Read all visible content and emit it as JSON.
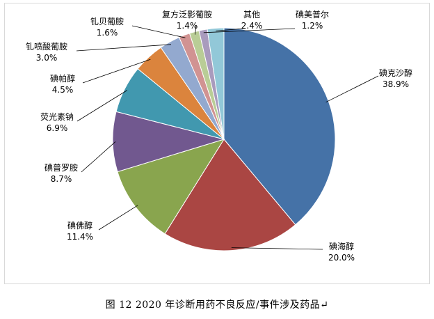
{
  "caption": "图 12   2020 年诊断用药不良反应/事件涉及药品↵",
  "chart_data": {
    "type": "pie",
    "title": "",
    "legend": "none",
    "slices": [
      {
        "name": "碘克沙醇",
        "value": 38.9,
        "label": "38.9%",
        "color": "#4572a7"
      },
      {
        "name": "碘海醇",
        "value": 20.0,
        "label": "20.0%",
        "color": "#aa4643"
      },
      {
        "name": "碘佛醇",
        "value": 11.4,
        "label": "11.4%",
        "color": "#89a54e"
      },
      {
        "name": "碘普罗胺",
        "value": 8.7,
        "label": "8.7%",
        "color": "#71588f"
      },
      {
        "name": "荧光素钠",
        "value": 6.9,
        "label": "6.9%",
        "color": "#4198af"
      },
      {
        "name": "碘帕醇",
        "value": 4.5,
        "label": "4.5%",
        "color": "#db843d"
      },
      {
        "name": "钆喷酸葡胺",
        "value": 3.0,
        "label": "3.0%",
        "color": "#93a9cf"
      },
      {
        "name": "钆贝葡胺",
        "value": 1.6,
        "label": "1.6%",
        "color": "#d19392"
      },
      {
        "name": "复方泛影葡胺",
        "value": 1.4,
        "label": "1.4%",
        "color": "#b9cd96"
      },
      {
        "name": "碘美普尔",
        "value": 1.2,
        "label": "1.2%",
        "color": "#a99bbd"
      },
      {
        "name": "其他",
        "value": 2.4,
        "label": "2.4%",
        "color": "#92c8d8"
      }
    ]
  }
}
